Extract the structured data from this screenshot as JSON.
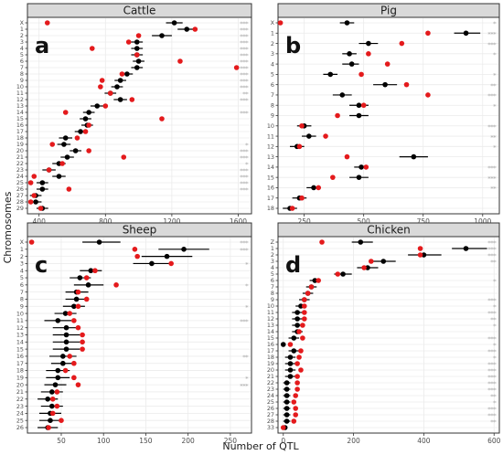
{
  "chart_data": {
    "type": "scatter",
    "xlabel": "Number of QTL",
    "ylabel": "Chromosomes",
    "panels": [
      {
        "title": "Cattle",
        "letter": "a",
        "xlim": [
          330,
          1680
        ],
        "xticks": [
          400,
          800,
          1200,
          1600
        ],
        "chromosomes": [
          "X",
          "1",
          "2",
          "3",
          "4",
          "5",
          "6",
          "7",
          "8",
          "9",
          "10",
          "11",
          "12",
          "13",
          "14",
          "15",
          "16",
          "17",
          "18",
          "19",
          "20",
          "21",
          "22",
          "23",
          "24",
          "25",
          "26",
          "27",
          "28",
          "29"
        ],
        "red": [
          450,
          1340,
          1000,
          940,
          720,
          990,
          1250,
          1590,
          900,
          780,
          770,
          830,
          960,
          800,
          560,
          1140,
          700,
          680,
          630,
          480,
          700,
          910,
          540,
          460,
          370,
          350,
          580,
          370,
          350,
          410
        ],
        "black": [
          1215,
          1290,
          1140,
          990,
          990,
          990,
          1000,
          990,
          930,
          890,
          870,
          830,
          890,
          750,
          700,
          680,
          690,
          650,
          560,
          550,
          620,
          570,
          520,
          460,
          520,
          420,
          420,
          380,
          380,
          420
        ],
        "ci": [
          [
            1165,
            1265
          ],
          [
            1235,
            1345
          ],
          [
            1080,
            1200
          ],
          [
            955,
            1025
          ],
          [
            955,
            1025
          ],
          [
            955,
            1025
          ],
          [
            965,
            1035
          ],
          [
            955,
            1025
          ],
          [
            895,
            965
          ],
          [
            855,
            925
          ],
          [
            835,
            905
          ],
          [
            795,
            865
          ],
          [
            850,
            930
          ],
          [
            710,
            790
          ],
          [
            665,
            735
          ],
          [
            645,
            715
          ],
          [
            655,
            725
          ],
          [
            615,
            685
          ],
          [
            520,
            600
          ],
          [
            510,
            590
          ],
          [
            585,
            655
          ],
          [
            530,
            610
          ],
          [
            480,
            560
          ],
          [
            420,
            500
          ],
          [
            480,
            560
          ],
          [
            385,
            455
          ],
          [
            385,
            455
          ],
          [
            345,
            415
          ],
          [
            345,
            415
          ],
          [
            385,
            455
          ]
        ],
        "significance": [
          "***",
          "***",
          "***",
          "***",
          "***",
          "***",
          "***",
          "***",
          "***",
          "***",
          "***",
          "**",
          "***",
          "",
          "***",
          "",
          "",
          "",
          "",
          "*",
          "***",
          "***",
          "*",
          "***",
          "***",
          "***",
          "***",
          "",
          "",
          ""
        ]
      },
      {
        "title": "Pig",
        "letter": "b",
        "xlim": [
          140,
          1070
        ],
        "xticks": [
          250,
          500,
          750,
          1000
        ],
        "chromosomes": [
          "X",
          "1",
          "2",
          "3",
          "4",
          "5",
          "6",
          "7",
          "8",
          "9",
          "10",
          "11",
          "12",
          "13",
          "14",
          "15",
          "16",
          "17",
          "18"
        ],
        "red": [
          150,
          770,
          660,
          520,
          600,
          490,
          680,
          770,
          500,
          390,
          240,
          340,
          230,
          430,
          510,
          370,
          310,
          240,
          200
        ],
        "black": [
          430,
          930,
          520,
          440,
          450,
          360,
          590,
          410,
          480,
          480,
          250,
          270,
          220,
          710,
          490,
          480,
          290,
          230,
          190
        ],
        "ci": [
          [
            400,
            460
          ],
          [
            880,
            990
          ],
          [
            480,
            560
          ],
          [
            410,
            470
          ],
          [
            410,
            480
          ],
          [
            330,
            390
          ],
          [
            540,
            640
          ],
          [
            370,
            450
          ],
          [
            440,
            520
          ],
          [
            440,
            520
          ],
          [
            220,
            280
          ],
          [
            240,
            300
          ],
          [
            190,
            250
          ],
          [
            650,
            770
          ],
          [
            460,
            520
          ],
          [
            440,
            520
          ],
          [
            260,
            320
          ],
          [
            200,
            260
          ],
          [
            160,
            220
          ]
        ],
        "significance": [
          "*",
          "***",
          "***",
          "*",
          "",
          "*",
          "**",
          "***",
          "*",
          "",
          "***",
          "**",
          "*",
          "",
          "***",
          "***",
          "**",
          "",
          ""
        ]
      },
      {
        "title": "Sheep",
        "letter": "c",
        "xlim": [
          10,
          275
        ],
        "xticks": [
          50,
          100,
          150,
          200,
          250
        ],
        "chromosomes": [
          "X",
          "1",
          "2",
          "3",
          "4",
          "5",
          "6",
          "7",
          "8",
          "9",
          "10",
          "11",
          "12",
          "13",
          "14",
          "15",
          "16",
          "17",
          "18",
          "19",
          "20",
          "21",
          "22",
          "23",
          "24",
          "25",
          "26"
        ],
        "red": [
          15,
          137,
          140,
          180,
          90,
          80,
          115,
          70,
          80,
          70,
          60,
          65,
          70,
          75,
          75,
          75,
          60,
          65,
          55,
          65,
          70,
          45,
          40,
          45,
          40,
          50,
          35
        ],
        "black": [
          95,
          195,
          175,
          157,
          85,
          72,
          82,
          68,
          68,
          65,
          55,
          46,
          56,
          56,
          56,
          56,
          52,
          52,
          46,
          46,
          43,
          39,
          34,
          39,
          37,
          37,
          34
        ],
        "ci": [
          [
            75,
            120
          ],
          [
            165,
            225
          ],
          [
            145,
            205
          ],
          [
            135,
            180
          ],
          [
            72,
            98
          ],
          [
            60,
            85
          ],
          [
            65,
            100
          ],
          [
            55,
            82
          ],
          [
            55,
            82
          ],
          [
            52,
            78
          ],
          [
            42,
            68
          ],
          [
            30,
            62
          ],
          [
            40,
            72
          ],
          [
            40,
            72
          ],
          [
            40,
            72
          ],
          [
            40,
            72
          ],
          [
            36,
            68
          ],
          [
            38,
            66
          ],
          [
            32,
            60
          ],
          [
            32,
            60
          ],
          [
            30,
            56
          ],
          [
            26,
            52
          ],
          [
            22,
            46
          ],
          [
            26,
            52
          ],
          [
            24,
            50
          ],
          [
            24,
            50
          ],
          [
            22,
            46
          ]
        ],
        "significance": [
          "***",
          "***",
          "",
          "*",
          "",
          "",
          "*",
          "",
          "",
          "*",
          "",
          "***",
          "",
          "",
          "",
          "",
          "**",
          "",
          "",
          "*",
          "***",
          "",
          "",
          "",
          "",
          "",
          ""
        ]
      },
      {
        "title": "Chicken",
        "letter": "d",
        "xlim": [
          -15,
          615
        ],
        "xticks": [
          0,
          200,
          400,
          600
        ],
        "chromosomes": [
          "Z",
          "1",
          "2",
          "3",
          "4",
          "5",
          "6",
          "7",
          "8",
          "9",
          "10",
          "11",
          "12",
          "13",
          "14",
          "15",
          "16",
          "17",
          "18",
          "19",
          "20",
          "21",
          "22",
          "23",
          "24",
          "25",
          "26",
          "27",
          "28",
          "33"
        ],
        "red": [
          110,
          390,
          390,
          250,
          230,
          155,
          100,
          80,
          70,
          60,
          60,
          60,
          60,
          55,
          45,
          55,
          20,
          50,
          45,
          40,
          50,
          40,
          40,
          40,
          35,
          30,
          35,
          35,
          30,
          0
        ],
        "black": [
          220,
          520,
          400,
          285,
          240,
          170,
          90,
          80,
          70,
          60,
          50,
          40,
          40,
          40,
          40,
          30,
          0,
          30,
          20,
          20,
          20,
          20,
          10,
          10,
          10,
          10,
          10,
          10,
          10,
          5
        ],
        "ci": [
          [
            195,
            255
          ],
          [
            480,
            580
          ],
          [
            355,
            450
          ],
          [
            250,
            320
          ],
          [
            210,
            270
          ],
          [
            145,
            195
          ],
          [
            75,
            105
          ],
          [
            65,
            95
          ],
          [
            55,
            85
          ],
          [
            45,
            75
          ],
          [
            35,
            65
          ],
          [
            25,
            55
          ],
          [
            25,
            55
          ],
          [
            25,
            55
          ],
          [
            25,
            55
          ],
          [
            15,
            45
          ],
          [
            0,
            0
          ],
          [
            15,
            45
          ],
          [
            5,
            35
          ],
          [
            5,
            35
          ],
          [
            5,
            35
          ],
          [
            5,
            35
          ],
          [
            0,
            20
          ],
          [
            0,
            20
          ],
          [
            0,
            20
          ],
          [
            0,
            20
          ],
          [
            0,
            20
          ],
          [
            0,
            20
          ],
          [
            0,
            20
          ],
          [
            0,
            10
          ]
        ],
        "significance": [
          "***",
          "***",
          "***",
          "**",
          "",
          "",
          "*",
          "",
          "",
          "***",
          "*",
          "***",
          "**",
          "*",
          "",
          "***",
          "*",
          "***",
          "*",
          "***",
          "***",
          "***",
          "***",
          "***",
          "**",
          "*",
          "***",
          "***",
          "**",
          ""
        ]
      }
    ]
  }
}
